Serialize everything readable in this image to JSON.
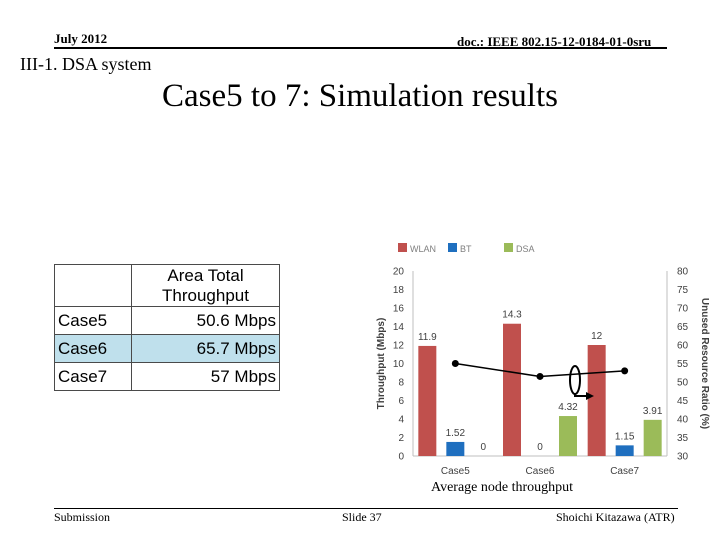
{
  "header": {
    "date": "July 2012",
    "doc_id": "doc.: IEEE 802.15-12-0184-01-0sru"
  },
  "section": "III-1. DSA system",
  "title": "Case5 to 7: Simulation results",
  "table": {
    "header": [
      "",
      "Area Total",
      "Throughput"
    ],
    "rows": [
      {
        "case": "Case5",
        "value": "50.6 Mbps"
      },
      {
        "case": "Case6",
        "value": "65.7 Mbps"
      },
      {
        "case": "Case7",
        "value": "57 Mbps"
      }
    ],
    "highlight_color": "#bfe0ec"
  },
  "caption": "Average node throughput",
  "footer": {
    "left": "Submission",
    "center": "Slide 37",
    "right": "Shoichi Kitazawa (ATR)"
  },
  "chart_data": {
    "type": "bar",
    "categories": [
      "Case5",
      "Case6",
      "Case7"
    ],
    "series": [
      {
        "name": "WLAN",
        "color": "#c0504d",
        "values": [
          11.9,
          14.3,
          12
        ],
        "labels": [
          "11.9",
          "14.3",
          "12"
        ]
      },
      {
        "name": "BT",
        "color": "#1f6fbf",
        "values": [
          1.52,
          0,
          1.15
        ],
        "labels": [
          "1.52",
          "0",
          "1.15"
        ]
      },
      {
        "name": "DSA",
        "color": "#9bbb59",
        "values": [
          0,
          4.32,
          3.91
        ],
        "labels": [
          "0",
          "4.32",
          "3.91"
        ]
      }
    ],
    "line_series": {
      "axis": "right",
      "values": [
        55,
        51.5,
        53
      ]
    },
    "ylabel": "Throughput (Mbps)",
    "ylabel_right": "Unused Resource Ratio (%)",
    "ylim": [
      0,
      20
    ],
    "yticks": [
      0,
      2,
      4,
      6,
      8,
      10,
      12,
      14,
      16,
      18,
      20
    ],
    "ylim_right": [
      30,
      80
    ],
    "yticks_right": [
      30,
      35,
      40,
      45,
      50,
      55,
      60,
      65,
      70,
      75,
      80
    ],
    "grid": false,
    "legend": "top"
  }
}
